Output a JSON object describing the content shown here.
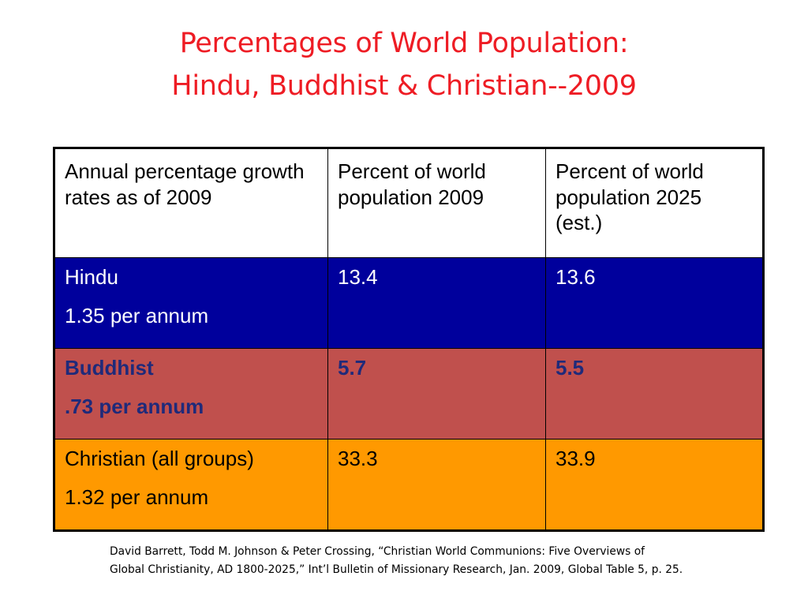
{
  "title": {
    "line1": "Percentages of World Population:",
    "line2": "Hindu, Buddhist & Christian--2009"
  },
  "table": {
    "headers": [
      "Annual percentage growth rates as of 2009",
      "Percent of world population 2009",
      "Percent of world population 2025 (est.)"
    ],
    "rows": [
      {
        "religion": "Hindu",
        "growth_rate": "1.35 per annum",
        "pct_2009": "13.4",
        "pct_2025": "13.6"
      },
      {
        "religion": "Buddhist",
        "growth_rate": ".73 per annum",
        "pct_2009": "5.7",
        "pct_2025": "5.5"
      },
      {
        "religion": "Christian (all groups)",
        "growth_rate": "1.32 per annum",
        "pct_2009": "33.3",
        "pct_2025": "33.9"
      }
    ]
  },
  "citation": {
    "line1": "David Barrett, Todd M. Johnson & Peter Crossing,  “Christian World Communions: Five Overviews of",
    "line2": "Global Christianity, AD 1800-2025,” Int’l Bulletin of Missionary Research,  Jan. 2009,  Global Table 5, p. 25."
  },
  "colors": {
    "title": "#ee1c24",
    "hindu_row": "#00009c",
    "buddhist_row": "#c0504d",
    "buddhist_text": "#1f2a7a",
    "christian_row": "#ff9900"
  }
}
